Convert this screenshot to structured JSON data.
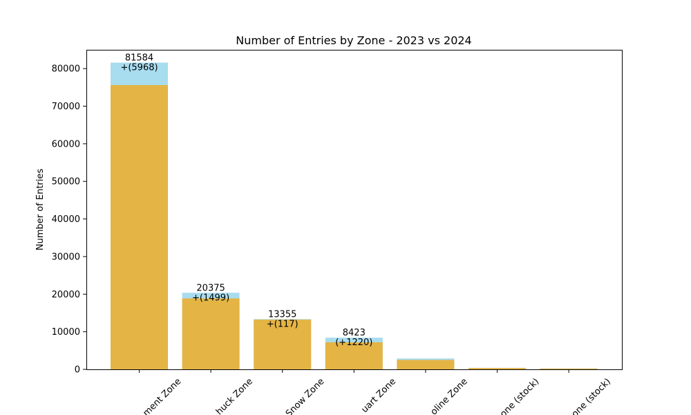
{
  "chart_data": {
    "type": "bar",
    "title": "Number of Entries by Zone - 2023 vs 2024",
    "ylabel": "Number of Entries",
    "xlabel": "",
    "ylim": [
      0,
      85000
    ],
    "yticks": [
      0,
      10000,
      20000,
      30000,
      40000,
      50000,
      60000,
      70000,
      80000
    ],
    "tick_labels": [
      "0",
      "10000",
      "20000",
      "30000",
      "40000",
      "50000",
      "60000",
      "70000",
      "80000"
    ],
    "categories": [
      "ment Zone",
      "huck Zone",
      "Snow Zone",
      "uart  Zone",
      "oline Zone",
      "one (stock)",
      "one (stock)"
    ],
    "series": [
      {
        "values": [
          81584,
          20375,
          13355,
          8423,
          2900,
          400,
          250
        ]
      },
      {
        "values": [
          75616,
          18876,
          13238,
          7203,
          2500,
          350,
          200
        ]
      }
    ],
    "annotations": [
      {
        "total": "81584",
        "delta": "+(5968)"
      },
      {
        "total": "20375",
        "delta": "+(1499)"
      },
      {
        "total": "13355",
        "delta": "+(117)"
      },
      {
        "total": "8423",
        "delta": "(+1220)"
      },
      {
        "total": "",
        "delta": ""
      },
      {
        "total": "",
        "delta": ""
      },
      {
        "total": "",
        "delta": ""
      }
    ],
    "colors": {
      "total": "#a8dcef",
      "base": "#e4b445"
    },
    "grid": false,
    "legend": "none"
  }
}
